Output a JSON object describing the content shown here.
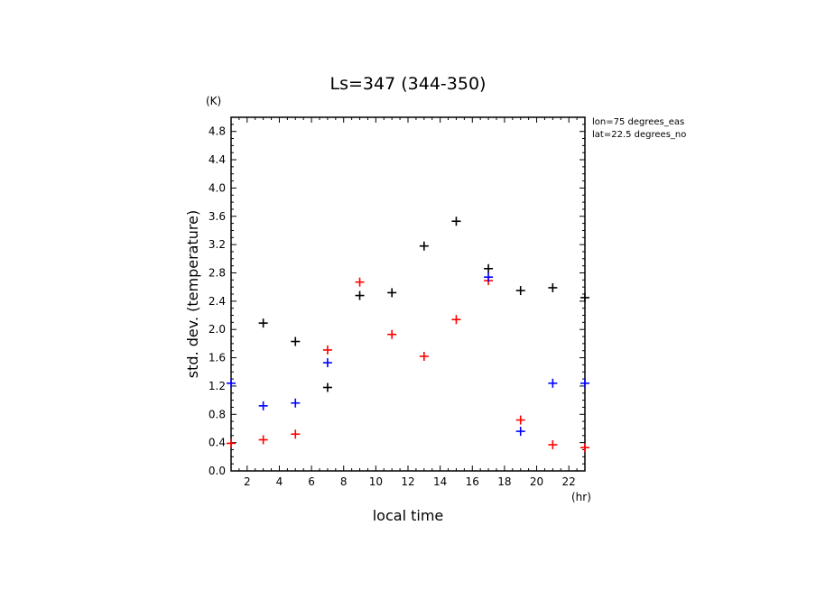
{
  "chart_data": {
    "type": "scatter",
    "title": "Ls=347 (344-350)",
    "xlabel": "local time",
    "ylabel": "std. dev. (temperature)",
    "x_unit": "(hr)",
    "y_unit": "(K)",
    "xlim": [
      1,
      23
    ],
    "ylim": [
      0.0,
      5.0
    ],
    "xticks": [
      "2",
      "4",
      "6",
      "8",
      "10",
      "12",
      "14",
      "16",
      "18",
      "20",
      "22"
    ],
    "yticks": [
      "0.0",
      "0.4",
      "0.8",
      "1.2",
      "1.6",
      "2.0",
      "2.4",
      "2.8",
      "3.2",
      "3.6",
      "4.0",
      "4.4",
      "4.8"
    ],
    "annotations": [
      "lon=75 degrees_eas",
      "lat=22.5 degrees_no"
    ],
    "series": [
      {
        "color": "#000000",
        "points": [
          {
            "x": 3,
            "y": 2.09
          },
          {
            "x": 5,
            "y": 1.83
          },
          {
            "x": 7,
            "y": 1.18
          },
          {
            "x": 9,
            "y": 2.48
          },
          {
            "x": 11,
            "y": 2.52
          },
          {
            "x": 13,
            "y": 3.18
          },
          {
            "x": 15,
            "y": 3.53
          },
          {
            "x": 17,
            "y": 2.86
          },
          {
            "x": 19,
            "y": 2.55
          },
          {
            "x": 21,
            "y": 2.59
          },
          {
            "x": 23,
            "y": 2.45
          }
        ]
      },
      {
        "color": "#ff0000",
        "points": [
          {
            "x": 1,
            "y": 0.39
          },
          {
            "x": 3,
            "y": 0.44
          },
          {
            "x": 5,
            "y": 0.52
          },
          {
            "x": 7,
            "y": 1.71
          },
          {
            "x": 9,
            "y": 2.67
          },
          {
            "x": 11,
            "y": 1.93
          },
          {
            "x": 13,
            "y": 1.62
          },
          {
            "x": 15,
            "y": 2.14
          },
          {
            "x": 17,
            "y": 2.69
          },
          {
            "x": 19,
            "y": 0.72
          },
          {
            "x": 21,
            "y": 0.37
          },
          {
            "x": 23,
            "y": 0.33
          }
        ]
      },
      {
        "color": "#0000ff",
        "points": [
          {
            "x": 1,
            "y": 1.24
          },
          {
            "x": 3,
            "y": 0.92
          },
          {
            "x": 5,
            "y": 0.96
          },
          {
            "x": 7,
            "y": 1.53
          },
          {
            "x": 17,
            "y": 2.74
          },
          {
            "x": 19,
            "y": 0.56
          },
          {
            "x": 21,
            "y": 1.24
          },
          {
            "x": 23,
            "y": 1.24
          }
        ]
      }
    ]
  }
}
